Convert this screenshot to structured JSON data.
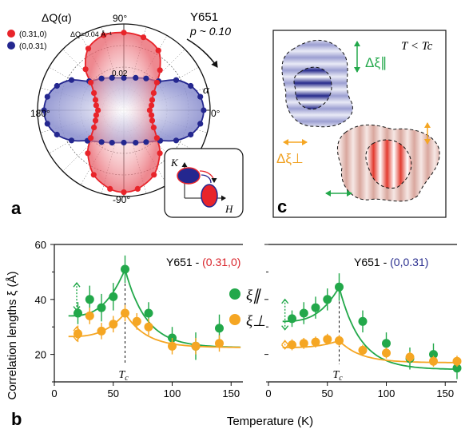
{
  "colors": {
    "red": "#e8242a",
    "blue": "#24278f",
    "green": "#22a84a",
    "orange": "#f5a623",
    "pie_text_red": "#d9232a",
    "pie_text_blue": "#2a2f8f",
    "label_orange": "#f0a020"
  },
  "panel_a": {
    "letter": "a",
    "legend_title": "ΔQ(α)",
    "legend": [
      {
        "label": "(0.31,0)",
        "color_key": "red"
      },
      {
        "label": "(0,0.31)",
        "color_key": "blue"
      }
    ],
    "sample": "Y651",
    "doping": "p ~ 0.10",
    "dq_label": "ΔQ=0.04 Å⁻¹",
    "ring_label": "0.02",
    "angle_labels": {
      "top": "90°",
      "left": "180°",
      "right": "0°",
      "bottom": "-90°"
    },
    "alpha": "α",
    "inset": {
      "k_axis": "K",
      "h_axis": "H"
    }
  },
  "panel_c": {
    "letter": "c",
    "condition": "T < Tc",
    "dxi_par": "Δξ∥",
    "dxi_perp": "Δξ⊥"
  },
  "panel_b": {
    "letter": "b",
    "ylabel": "Correlation lengths ξ (Å)",
    "xlabel": "Temperature (K)",
    "left_title_prefix": "Y651 - ",
    "left_title_q": "(0.31,0)",
    "right_title_prefix": "Y651 - ",
    "right_title_q": "(0,0.31)",
    "tc_label": "Tc",
    "legend_par": "ξ∥",
    "legend_perp": "ξ⊥"
  },
  "chart_data": [
    {
      "type": "scatter",
      "subplot": "a",
      "coordinate_system": "polar",
      "radial_ticks": [
        0.02,
        0.04
      ],
      "angle_ticks_deg": [
        0,
        90,
        180,
        -90
      ],
      "series": [
        {
          "name": "(0.31,0)",
          "color_key": "red",
          "points_deg_r": [
            [
              90,
              0.036
            ],
            [
              75,
              0.035
            ],
            [
              60,
              0.032
            ],
            [
              48,
              0.025
            ],
            [
              40,
              0.02
            ],
            [
              30,
              0.016
            ],
            [
              20,
              0.014
            ],
            [
              10,
              0.013
            ],
            [
              0,
              0.012
            ],
            [
              -10,
              0.013
            ],
            [
              -20,
              0.014
            ],
            [
              -30,
              0.016
            ],
            [
              -40,
              0.02
            ],
            [
              -50,
              0.026
            ],
            [
              -65,
              0.033
            ],
            [
              -80,
              0.037
            ],
            [
              -90,
              0.038
            ],
            [
              105,
              0.036
            ],
            [
              120,
              0.033
            ],
            [
              133,
              0.026
            ],
            [
              140,
              0.02
            ],
            [
              150,
              0.016
            ],
            [
              160,
              0.014
            ],
            [
              170,
              0.013
            ],
            [
              180,
              0.012
            ],
            [
              -170,
              0.013
            ],
            [
              -160,
              0.014
            ],
            [
              -150,
              0.016
            ],
            [
              -140,
              0.02
            ],
            [
              -130,
              0.026
            ],
            [
              -115,
              0.033
            ],
            [
              -100,
              0.037
            ]
          ]
        },
        {
          "name": "(0,0.31)",
          "color_key": "blue",
          "points_deg_r": [
            [
              0,
              0.037
            ],
            [
              10,
              0.036
            ],
            [
              20,
              0.033
            ],
            [
              30,
              0.028
            ],
            [
              40,
              0.021
            ],
            [
              55,
              0.018
            ],
            [
              70,
              0.016
            ],
            [
              90,
              0.015
            ],
            [
              110,
              0.016
            ],
            [
              125,
              0.018
            ],
            [
              140,
              0.021
            ],
            [
              150,
              0.028
            ],
            [
              160,
              0.033
            ],
            [
              170,
              0.036
            ],
            [
              180,
              0.037
            ],
            [
              -170,
              0.036
            ],
            [
              -160,
              0.033
            ],
            [
              -150,
              0.028
            ],
            [
              -140,
              0.022
            ],
            [
              -125,
              0.018
            ],
            [
              -110,
              0.016
            ],
            [
              -90,
              0.015
            ],
            [
              -70,
              0.016
            ],
            [
              -55,
              0.018
            ],
            [
              -40,
              0.022
            ],
            [
              -30,
              0.028
            ],
            [
              -20,
              0.033
            ],
            [
              -10,
              0.036
            ]
          ]
        }
      ]
    },
    {
      "type": "scatter",
      "subplot": "b-left",
      "title": "Y651 - (0.31,0)",
      "xlabel": "Temperature (K)",
      "ylabel": "Correlation lengths ξ (Å)",
      "xlim": [
        0,
        160
      ],
      "ylim": [
        10,
        60
      ],
      "xticks": [
        0,
        50,
        100,
        150
      ],
      "yticks": [
        20,
        40,
        60
      ],
      "tc": 60,
      "series": [
        {
          "name": "ξ∥",
          "color_key": "green",
          "x": [
            20,
            30,
            40,
            50,
            60,
            80,
            100,
            120,
            140
          ],
          "y": [
            35,
            40,
            37,
            41,
            51,
            35,
            26,
            23,
            29.5
          ],
          "err": [
            4,
            5,
            5,
            5,
            5,
            4,
            4,
            5,
            5
          ]
        },
        {
          "name": "ξ⊥",
          "color_key": "orange",
          "x": [
            20,
            30,
            40,
            50,
            60,
            70,
            80,
            100,
            120,
            140
          ],
          "y": [
            27.5,
            34,
            28.5,
            31,
            35,
            32,
            30,
            23,
            23,
            24
          ],
          "err": [
            3,
            3,
            3,
            3,
            3,
            3,
            3,
            3,
            3,
            3
          ]
        }
      ]
    },
    {
      "type": "scatter",
      "subplot": "b-right",
      "title": "Y651 - (0,0.31)",
      "xlabel": "Temperature (K)",
      "xlim": [
        0,
        160
      ],
      "ylim": [
        10,
        60
      ],
      "xticks": [
        0,
        50,
        100,
        150
      ],
      "yticks": [
        20,
        40,
        60
      ],
      "tc": 60,
      "series": [
        {
          "name": "ξ∥",
          "color_key": "green",
          "x": [
            20,
            30,
            40,
            50,
            60,
            80,
            100,
            120,
            140,
            160
          ],
          "y": [
            33,
            35,
            37,
            40,
            44.5,
            32,
            24,
            18.5,
            20,
            15
          ],
          "err": [
            3,
            4,
            4,
            4,
            5,
            4,
            4,
            4,
            4,
            4
          ]
        },
        {
          "name": "ξ⊥",
          "color_key": "orange",
          "x": [
            20,
            30,
            40,
            50,
            60,
            80,
            100,
            120,
            140,
            160
          ],
          "y": [
            23.5,
            24,
            24.5,
            25.5,
            25,
            21.5,
            20.5,
            19,
            17.5,
            17.5
          ],
          "err": [
            2,
            2,
            2,
            2,
            2,
            2,
            2,
            2,
            2,
            2
          ]
        }
      ]
    }
  ]
}
